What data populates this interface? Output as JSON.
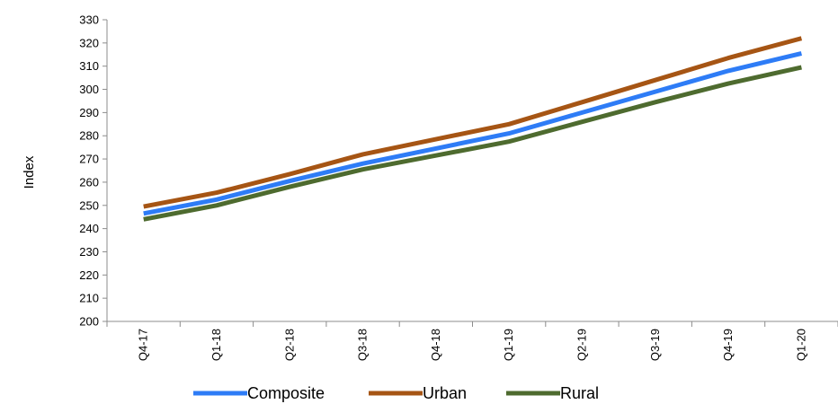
{
  "chart_data": {
    "type": "line",
    "title": "",
    "xlabel": "",
    "ylabel": "Index",
    "ylim": [
      200,
      330
    ],
    "ytick_step": 10,
    "categories": [
      "Q4-17",
      "Q1-18",
      "Q2-18",
      "Q3-18",
      "Q4-18",
      "Q1-19",
      "Q2-19",
      "Q3-19",
      "Q4-19",
      "Q1-20"
    ],
    "series": [
      {
        "name": "Composite",
        "color": "#2e7cf6",
        "values": [
          246.5,
          252.5,
          260.5,
          268.0,
          274.5,
          281.0,
          290.0,
          299.0,
          308.0,
          315.5
        ]
      },
      {
        "name": "Urban",
        "color": "#a65514",
        "values": [
          249.5,
          255.5,
          263.5,
          272.0,
          278.5,
          285.0,
          294.5,
          304.0,
          313.5,
          322.0
        ]
      },
      {
        "name": "Rural",
        "color": "#4e6b2f",
        "values": [
          244.0,
          250.0,
          258.0,
          265.5,
          271.5,
          277.5,
          286.0,
          294.5,
          302.5,
          309.5
        ]
      }
    ],
    "grid": false,
    "legend": "bottom"
  }
}
